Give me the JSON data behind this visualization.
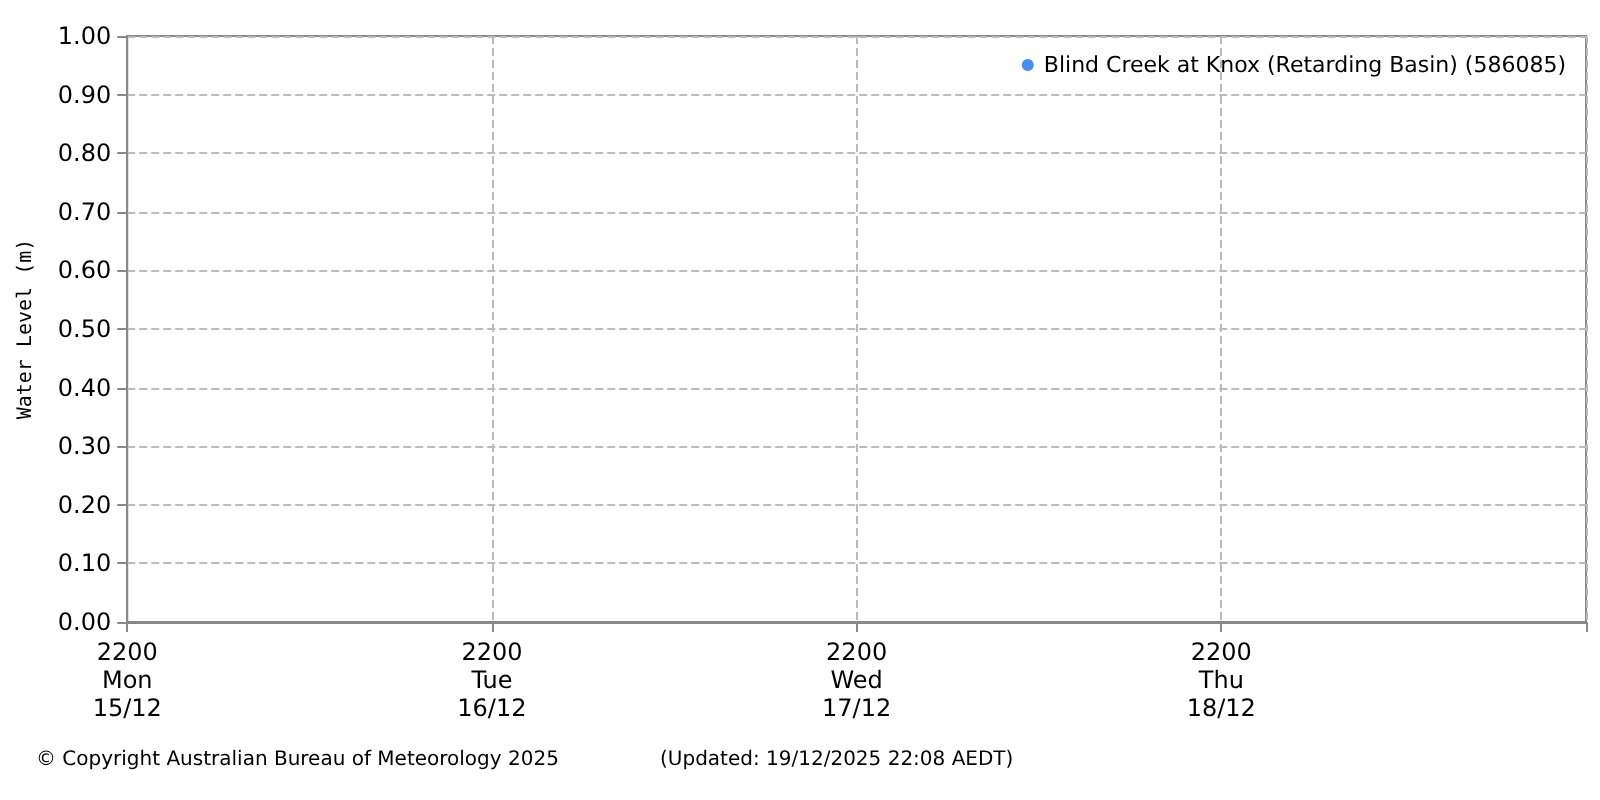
{
  "chart_data": {
    "type": "scatter",
    "ylabel": "Water Level (m)",
    "annotations": [
      "© Copyright Australian Bureau of Meteorology 2025",
      "(Updated: 19/12/2025 22:08 AEDT)"
    ],
    "series": [
      {
        "name": "Blind Creek at Knox (Retarding Basin) (586085)",
        "color": "#1a73e8",
        "values": [
          null,
          null,
          null,
          null,
          null
        ]
      }
    ],
    "categories": [
      "2200\nMon\n15/12",
      "2200\nTue\n16/12",
      "2200\nWed\n17/12",
      "2200\nThu\n18/12",
      null
    ],
    "ylim": [
      0,
      1
    ],
    "yticks": [
      {
        "value": 0,
        "label": "0.00"
      },
      {
        "value": 0.1,
        "label": "0.10"
      },
      {
        "value": 0.2,
        "label": "0.20"
      },
      {
        "value": 0.3,
        "label": "0.30"
      },
      {
        "value": 0.4,
        "label": "0.40"
      },
      {
        "value": 0.5,
        "label": "0.50"
      },
      {
        "value": 0.6,
        "label": "0.60"
      },
      {
        "value": 0.7,
        "label": "0.70"
      },
      {
        "value": 0.8,
        "label": "0.80"
      },
      {
        "value": 0.9,
        "label": "0.90"
      },
      {
        "value": 1,
        "label": "1.00"
      }
    ],
    "grid": true,
    "legend": "top right",
    "marker": "circle"
  }
}
